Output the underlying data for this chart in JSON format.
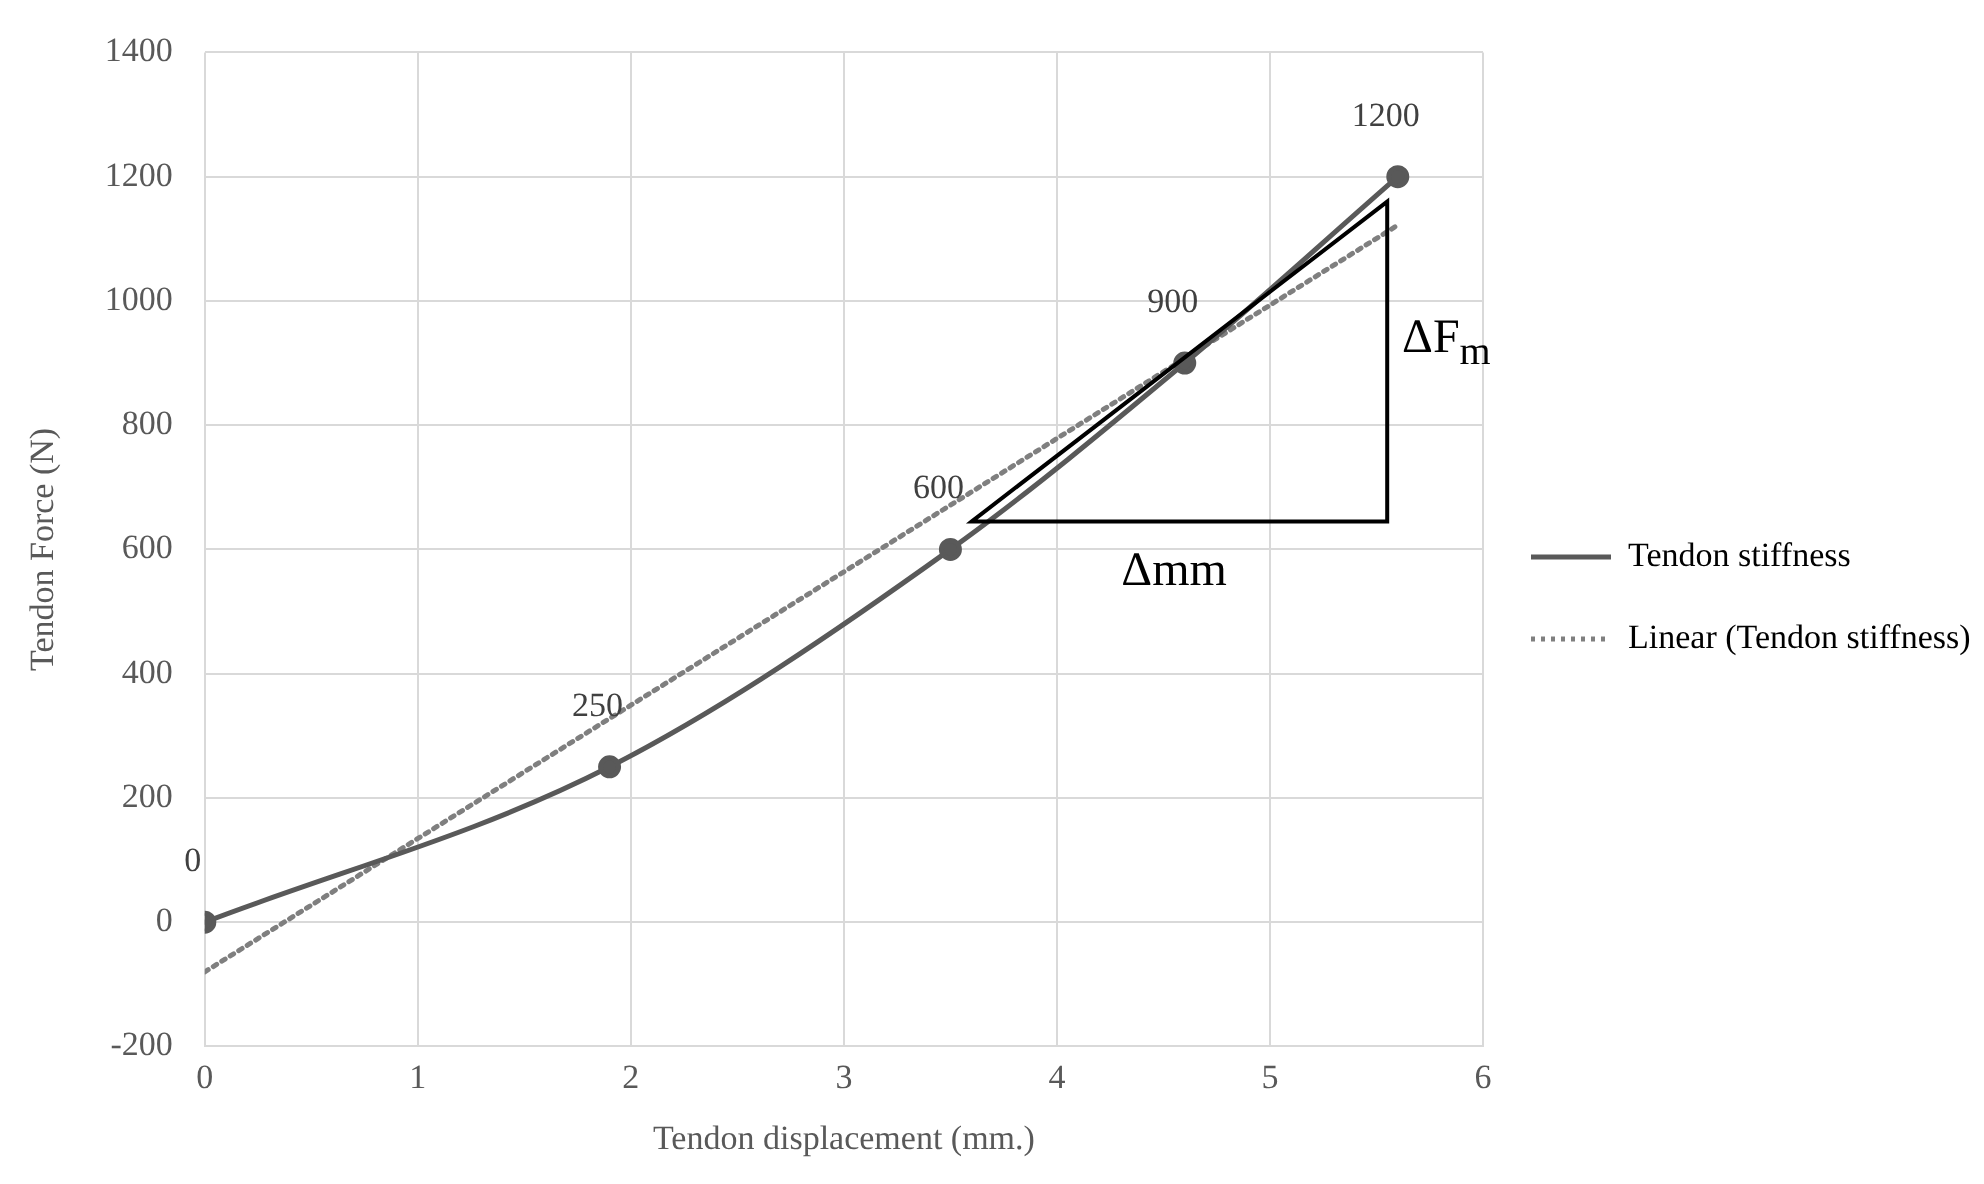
{
  "chart_data": {
    "type": "line",
    "xlabel": "Tendon displacement (mm.)",
    "ylabel": "Tendon Force (N)",
    "xlim": [
      0,
      6
    ],
    "xticks": [
      0,
      1,
      2,
      3,
      4,
      5,
      6
    ],
    "ylim": [
      -200,
      1400
    ],
    "yticks": [
      -200,
      0,
      200,
      400,
      600,
      800,
      1000,
      1200,
      1400
    ],
    "grid": true,
    "legend": "right",
    "series": [
      {
        "name": "Tendon stiffness",
        "color": "#595959",
        "x": [
          0,
          1.9,
          3.5,
          4.6,
          5.6
        ],
        "values": [
          0,
          250,
          600,
          900,
          1200
        ],
        "value_labels": [
          "0",
          "250",
          "600",
          "900",
          "1200"
        ],
        "marker": "circle",
        "line_style": "solid"
      },
      {
        "name": "Linear (Tendon stiffness)",
        "color": "#7f7f7f",
        "x": [
          0,
          5.6
        ],
        "values": [
          -80,
          1122
        ],
        "marker": "none",
        "line_style": "dotted"
      }
    ],
    "annotations": [
      "ΔF$_{m}$",
      "Δmm"
    ]
  }
}
